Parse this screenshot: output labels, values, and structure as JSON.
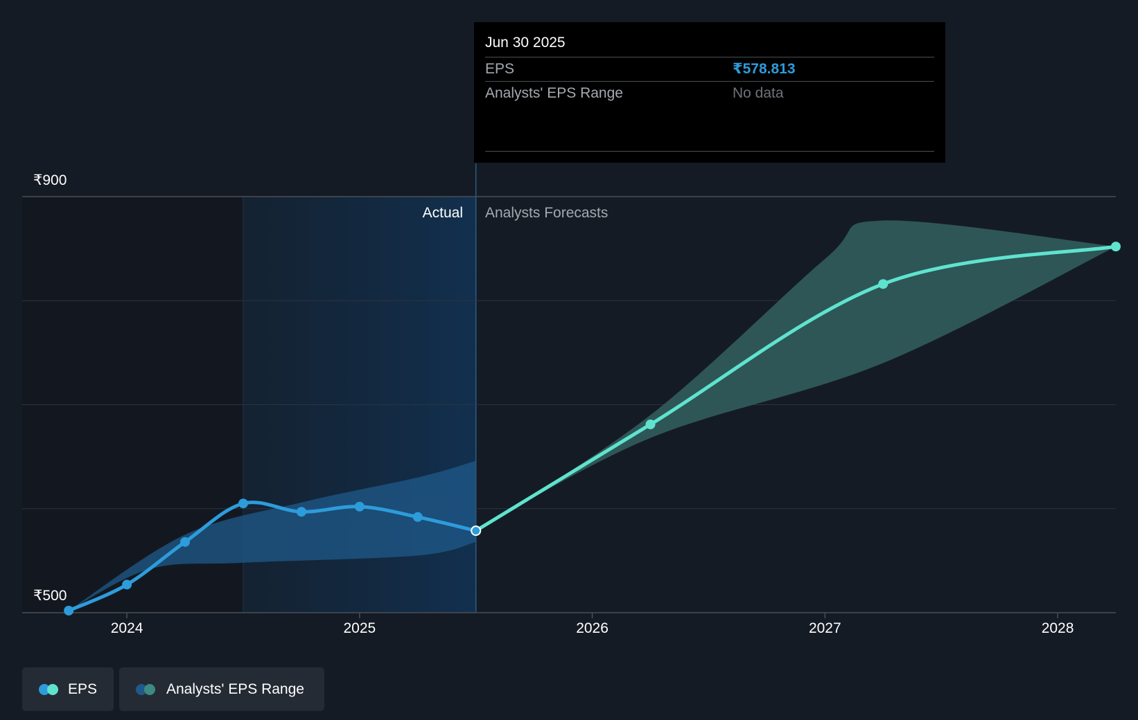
{
  "colors": {
    "background": "#151b24",
    "eps_actual": "#2d9cdb",
    "eps_forecast": "#5fe3cf",
    "range_actual": "#1f5a8a",
    "range_forecast": "#2f5a5a"
  },
  "region_labels": {
    "actual": "Actual",
    "forecast": "Analysts Forecasts"
  },
  "tooltip": {
    "date": "Jun 30 2025",
    "rows": [
      {
        "label": "EPS",
        "value": "₹578.813"
      },
      {
        "label": "Analysts' EPS Range",
        "value": "No data"
      }
    ]
  },
  "legend": [
    {
      "label": "EPS",
      "icon": "eps-legend-dots"
    },
    {
      "label": "Analysts' EPS Range",
      "icon": "range-legend-dots"
    }
  ],
  "chart_data": {
    "type": "line",
    "ylim": [
      500,
      900
    ],
    "y_tick_labels": [
      "₹900",
      "₹500"
    ],
    "x_tick_labels": [
      "2024",
      "2025",
      "2026",
      "2027",
      "2028"
    ],
    "x_axis_years": [
      2024,
      2025,
      2026,
      2027,
      2028
    ],
    "x_range_years": [
      2023.55,
      2028.25
    ],
    "grid": true,
    "highlight": {
      "from_year": 2024.5,
      "to_year": 2025.5
    },
    "series": [
      {
        "name": "EPS",
        "kind": "actual",
        "points": [
          {
            "x": 2023.75,
            "y": 502
          },
          {
            "x": 2024.0,
            "y": 527
          },
          {
            "x": 2024.25,
            "y": 568
          },
          {
            "x": 2024.5,
            "y": 605
          },
          {
            "x": 2024.75,
            "y": 597
          },
          {
            "x": 2025.0,
            "y": 602
          },
          {
            "x": 2025.25,
            "y": 592
          },
          {
            "x": 2025.5,
            "y": 578.813
          }
        ]
      },
      {
        "name": "EPS",
        "kind": "forecast",
        "points": [
          {
            "x": 2025.5,
            "y": 578.813
          },
          {
            "x": 2026.25,
            "y": 681
          },
          {
            "x": 2027.25,
            "y": 816
          },
          {
            "x": 2028.25,
            "y": 852
          }
        ]
      },
      {
        "name": "Analysts' EPS Range",
        "kind": "actual-range",
        "upper": [
          {
            "x": 2023.75,
            "y": 502
          },
          {
            "x": 2024.25,
            "y": 575
          },
          {
            "x": 2024.75,
            "y": 606
          },
          {
            "x": 2025.25,
            "y": 630
          },
          {
            "x": 2025.5,
            "y": 646
          }
        ],
        "lower": [
          {
            "x": 2023.75,
            "y": 502
          },
          {
            "x": 2024.1,
            "y": 542
          },
          {
            "x": 2024.5,
            "y": 548
          },
          {
            "x": 2025.25,
            "y": 555
          },
          {
            "x": 2025.5,
            "y": 568
          }
        ]
      },
      {
        "name": "Analysts' EPS Range",
        "kind": "forecast-range",
        "upper": [
          {
            "x": 2025.5,
            "y": 578.813
          },
          {
            "x": 2026.25,
            "y": 690
          },
          {
            "x": 2027.0,
            "y": 840
          },
          {
            "x": 2027.25,
            "y": 877
          },
          {
            "x": 2028.25,
            "y": 852
          }
        ],
        "lower": [
          {
            "x": 2025.5,
            "y": 578.813
          },
          {
            "x": 2026.25,
            "y": 668
          },
          {
            "x": 2027.25,
            "y": 740
          },
          {
            "x": 2028.25,
            "y": 852
          }
        ]
      }
    ]
  }
}
